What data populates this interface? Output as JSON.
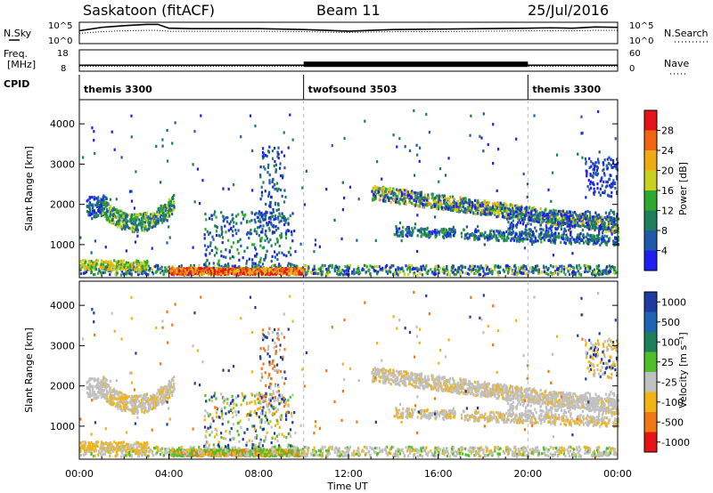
{
  "header": {
    "station": "Saskatoon (fitACF)",
    "beam": "Beam 11",
    "date": "25/Jul/2016"
  },
  "colors": {
    "power_scale": [
      "#1e1ef0",
      "#1e5aaa",
      "#1e7d5a",
      "#2daa2d",
      "#c8d21e",
      "#f0aa14",
      "#f06414",
      "#e61414"
    ],
    "velocity_scale": [
      "#1e3ca0",
      "#1e64b4",
      "#1e7d5a",
      "#50be28",
      "#c0c0c0",
      "#f0b414",
      "#f07814",
      "#e61414"
    ]
  },
  "chart_data": [
    {
      "type": "line",
      "panel": "noise",
      "left_label": "N.Sky",
      "right_label": "N.Search",
      "left_ticks": [
        "10^5",
        "10^0"
      ],
      "right_ticks": [
        "10^5",
        "10^0"
      ],
      "x": [
        0,
        1,
        2,
        3,
        3.5,
        4,
        5,
        6,
        8,
        10,
        12,
        14,
        16,
        18,
        20,
        21,
        22,
        23,
        24
      ],
      "n_sky_log": [
        3.0,
        3.8,
        4.2,
        4.5,
        4.5,
        3.6,
        3.5,
        3.5,
        3.5,
        3.3,
        2.9,
        3.3,
        3.4,
        3.5,
        3.6,
        3.7,
        3.6,
        3.9,
        3.8
      ],
      "n_search_log": [
        2.4,
        2.8,
        3.0,
        3.1,
        3.1,
        2.9,
        2.9,
        2.9,
        2.9,
        2.8,
        2.6,
        2.8,
        2.8,
        2.9,
        3.0,
        3.0,
        3.0,
        3.1,
        3.1
      ]
    },
    {
      "type": "line",
      "panel": "frequency",
      "left_label_1": "Freq.",
      "left_label_2": "[MHz]",
      "right_label": "Nave",
      "left_ticks": [
        "18",
        "8"
      ],
      "right_ticks": [
        "60",
        "0"
      ],
      "x": [
        0,
        10,
        20,
        24
      ],
      "freq_mhz": [
        10.8,
        10.8,
        10.8,
        10.8
      ],
      "nave": [
        14,
        14,
        14,
        14
      ]
    },
    {
      "type": "table",
      "panel": "cpid",
      "label": "CPID",
      "segments": [
        {
          "name": "themis 3300",
          "start": 0,
          "end": 10
        },
        {
          "name": "twofsound 3503",
          "start": 10,
          "end": 20
        },
        {
          "name": "themis 3300",
          "start": 20,
          "end": 24
        }
      ]
    },
    {
      "type": "heatmap",
      "panel": "power",
      "ylabel": "Slant Range [km]",
      "ylim": [
        180,
        4600
      ],
      "xlim": [
        0,
        24
      ],
      "y_ticks": [
        "4000",
        "3000",
        "2000",
        "1000"
      ],
      "colorbar_label": "Power [dB]",
      "colorbar_ticks": [
        "28",
        "24",
        "20",
        "16",
        "12",
        "8",
        "4"
      ]
    },
    {
      "type": "heatmap",
      "panel": "velocity",
      "ylabel": "Slant Range [km]",
      "xlabel": "Time UT",
      "ylim": [
        180,
        4600
      ],
      "xlim": [
        0,
        24
      ],
      "y_ticks": [
        "4000",
        "3000",
        "2000",
        "1000"
      ],
      "x_ticks": [
        "00:00",
        "04:00",
        "08:00",
        "12:00",
        "16:00",
        "20:00",
        "00:00"
      ],
      "colorbar_label": "Velocity [m s⁻¹]",
      "colorbar_ticks": [
        "1000",
        "500",
        "100",
        "25",
        "-25",
        "-100",
        "-500",
        "-1000"
      ]
    }
  ]
}
